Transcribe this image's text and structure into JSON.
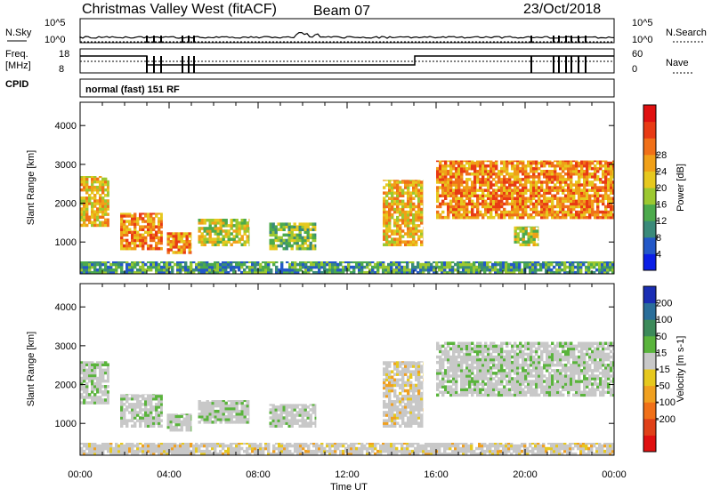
{
  "header": {
    "station": "Christmas Valley West (fitACF)",
    "beam": "Beam 07",
    "date": "23/Oct/2018"
  },
  "noise_panel": {
    "left_label": "N.Sky",
    "left_ticks": [
      "10^5",
      "10^0"
    ],
    "right_label": "N.Search",
    "right_ticks": [
      "10^5",
      "10^0"
    ]
  },
  "freq_panel": {
    "left_label_1": "Freq.",
    "left_label_2": "[MHz]",
    "left_ticks": [
      "18",
      "8"
    ],
    "right_label": "Nave",
    "right_ticks": [
      "60",
      "0"
    ]
  },
  "cpid": {
    "label": "CPID",
    "text": "normal (fast) 151 RF"
  },
  "chart_data": [
    {
      "type": "heatmap",
      "title": "Power",
      "ylabel": "Slant Range [km]",
      "ylim": [
        180,
        4600
      ],
      "yticks": [
        "1000",
        "2000",
        "3000",
        "4000"
      ],
      "xlim_hours": [
        0,
        24
      ],
      "colorbar": {
        "label": "Power [dB]",
        "ticks": [
          "4",
          "8",
          "12",
          "16",
          "20",
          "24",
          "28"
        ],
        "colors": [
          "#0a1ee6",
          "#2358c8",
          "#3a8a7a",
          "#4caa4c",
          "#9cc830",
          "#e6c81e",
          "#f0a018",
          "#f07018",
          "#e83a14",
          "#e01010"
        ]
      },
      "echo_regions": [
        {
          "t0": 0.0,
          "t1": 1.3,
          "r0": 1400,
          "r1": 2700,
          "db": 22
        },
        {
          "t0": 1.8,
          "t1": 3.7,
          "r0": 800,
          "r1": 1750,
          "db": 26
        },
        {
          "t0": 3.9,
          "t1": 5.0,
          "r0": 700,
          "r1": 1250,
          "db": 24
        },
        {
          "t0": 5.3,
          "t1": 7.6,
          "r0": 900,
          "r1": 1600,
          "db": 18
        },
        {
          "t0": 8.5,
          "t1": 10.6,
          "r0": 800,
          "r1": 1500,
          "db": 14
        },
        {
          "t0": 13.6,
          "t1": 15.4,
          "r0": 900,
          "r1": 2600,
          "db": 20
        },
        {
          "t0": 16.0,
          "t1": 24.0,
          "r0": 1600,
          "r1": 3100,
          "db": 24
        },
        {
          "t0": 19.5,
          "t1": 20.6,
          "r0": 900,
          "r1": 1400,
          "db": 18
        },
        {
          "t0": 0.0,
          "t1": 24.0,
          "r0": 180,
          "r1": 500,
          "db": 10
        }
      ]
    },
    {
      "type": "heatmap",
      "title": "Velocity",
      "ylabel": "Slant Range [km]",
      "ylim": [
        180,
        4600
      ],
      "yticks": [
        "1000",
        "2000",
        "3000",
        "4000"
      ],
      "xlabel": "Time UT",
      "xticks": [
        "00:00",
        "04:00",
        "08:00",
        "12:00",
        "16:00",
        "20:00",
        "00:00"
      ],
      "colorbar": {
        "label": "Velocity [m s-1]",
        "ticks": [
          "200",
          "100",
          "50",
          "15",
          "-15",
          "-50",
          "-100",
          "-200"
        ],
        "colors": [
          "#1a2eb4",
          "#2a6e9a",
          "#3c8a5a",
          "#5ab43c",
          "#c8c8c8",
          "#e6c81e",
          "#f0a020",
          "#f07018",
          "#e04018",
          "#e01010"
        ]
      },
      "echo_regions": [
        {
          "t0": 0.0,
          "t1": 1.3,
          "r0": 1500,
          "r1": 2600,
          "v": 0
        },
        {
          "t0": 1.8,
          "t1": 3.7,
          "r0": 900,
          "r1": 1750,
          "v": 0
        },
        {
          "t0": 3.9,
          "t1": 5.0,
          "r0": 800,
          "r1": 1250,
          "v": 0
        },
        {
          "t0": 5.3,
          "t1": 7.6,
          "r0": 1000,
          "r1": 1600,
          "v": 0
        },
        {
          "t0": 8.5,
          "t1": 10.6,
          "r0": 900,
          "r1": 1500,
          "v": 0
        },
        {
          "t0": 13.6,
          "t1": 15.4,
          "r0": 900,
          "r1": 2600,
          "v": -40
        },
        {
          "t0": 16.0,
          "t1": 24.0,
          "r0": 1700,
          "r1": 3100,
          "v": 0
        },
        {
          "t0": 0.0,
          "t1": 24.0,
          "r0": 180,
          "r1": 500,
          "v": -30
        }
      ]
    }
  ]
}
